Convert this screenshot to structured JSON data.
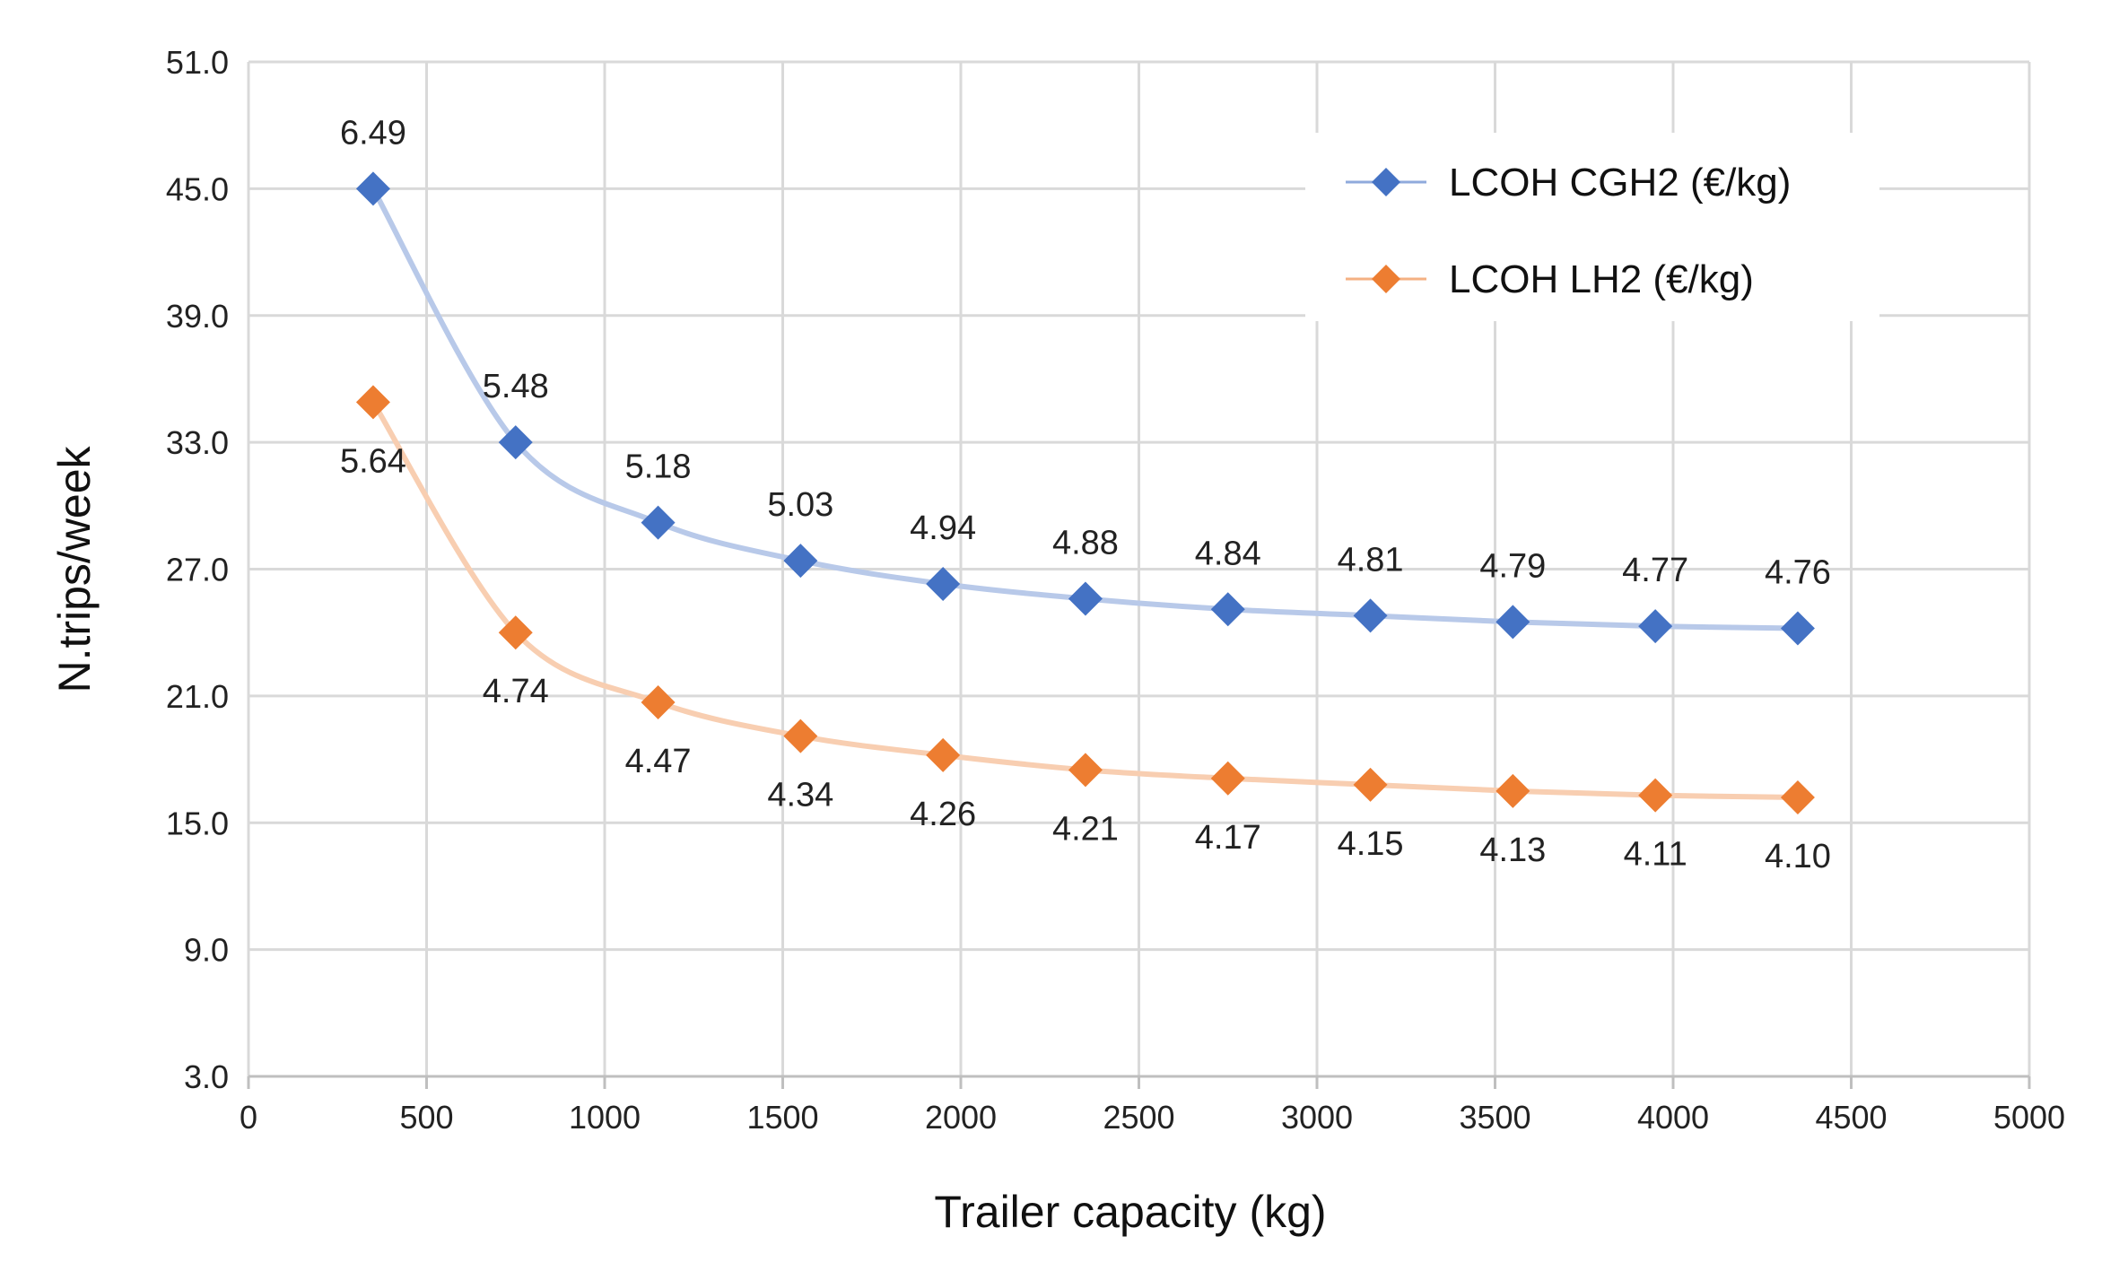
{
  "chart_data": {
    "type": "line",
    "title": "",
    "xlabel": "Trailer capacity (kg)",
    "ylabel": "N.trips/week",
    "xlim": [
      0,
      5000
    ],
    "ylim": [
      3,
      51
    ],
    "x_ticks": [
      "0",
      "500",
      "1000",
      "1500",
      "2000",
      "2500",
      "3000",
      "3500",
      "4000",
      "4500",
      "5000"
    ],
    "y_ticks": [
      "3.0",
      "9.0",
      "15.0",
      "21.0",
      "27.0",
      "33.0",
      "39.0",
      "45.0",
      "51.0"
    ],
    "grid": true,
    "legend_position": "top-right",
    "x": [
      350,
      750,
      1150,
      1550,
      1950,
      2350,
      2750,
      3150,
      3550,
      3950,
      4350
    ],
    "series": [
      {
        "name": "LCOH CGH2  (€/kg)",
        "color": "#4472C4",
        "values": [
          45.0,
          33.0,
          29.2,
          27.4,
          26.3,
          25.6,
          25.1,
          24.8,
          24.5,
          24.3,
          24.2
        ],
        "labels": [
          "6.49",
          "5.48",
          "5.18",
          "5.03",
          "4.94",
          "4.88",
          "4.84",
          "4.81",
          "4.79",
          "4.77",
          "4.76"
        ],
        "label_position": "above"
      },
      {
        "name": "LCOH LH2 (€/kg)",
        "color": "#ED7D31",
        "values": [
          34.9,
          24.0,
          20.7,
          19.1,
          18.2,
          17.5,
          17.1,
          16.8,
          16.5,
          16.3,
          16.2
        ],
        "labels": [
          "5.64",
          "4.74",
          "4.47",
          "4.34",
          "4.26",
          "4.21",
          "4.17",
          "4.15",
          "4.13",
          "4.11",
          "4.10"
        ],
        "label_position": "below"
      }
    ]
  }
}
